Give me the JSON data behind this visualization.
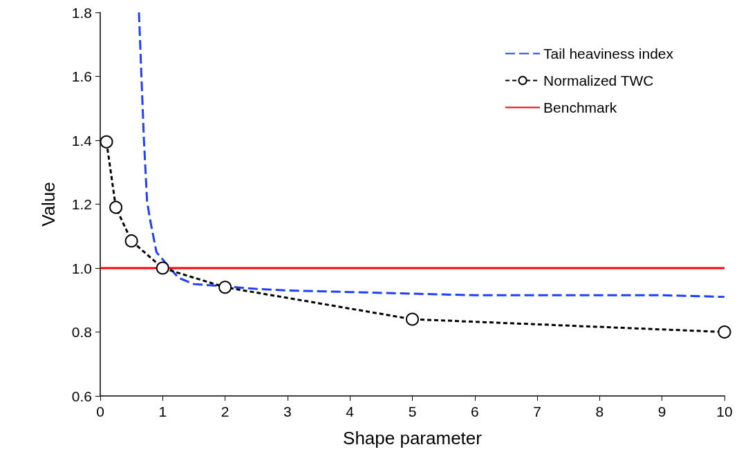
{
  "chart_data": {
    "type": "line",
    "xlabel": "Shape parameter",
    "ylabel": "Value",
    "xlim": [
      0,
      10
    ],
    "xticks": [
      0,
      1,
      2,
      3,
      4,
      5,
      6,
      7,
      8,
      9,
      10
    ],
    "ylim": [
      0.6,
      1.8
    ],
    "yticks": [
      {
        "value": 0.6,
        "label": "0.6"
      },
      {
        "value": 0.8,
        "label": "0.8"
      },
      {
        "value": 1.0,
        "label": "1.0"
      },
      {
        "value": 1.2,
        "label": "1.2"
      },
      {
        "value": 1.4,
        "label": "1.4"
      },
      {
        "value": 1.6,
        "label": "1.6"
      },
      {
        "value": 1.8,
        "label": "1.8"
      }
    ],
    "grid": false,
    "legend": "top right",
    "series": [
      {
        "name": "Tail heaviness index",
        "color": "#1f3fff",
        "line_style": "dashed",
        "marker": "none",
        "x": [
          0.62,
          0.66,
          0.7,
          0.75,
          0.8,
          0.9,
          1.25,
          1.5,
          2.5,
          3,
          4,
          5,
          6,
          7,
          8,
          9,
          10
        ],
        "values": [
          1.8,
          1.6,
          1.4,
          1.21,
          1.15,
          1.05,
          0.97,
          0.95,
          0.935,
          0.93,
          0.925,
          0.92,
          0.915,
          0.915,
          0.915,
          0.915,
          0.91
        ]
      },
      {
        "name": "Normalized TWC",
        "color": "#000000",
        "line_style": "dashed",
        "marker": "circle",
        "x": [
          0.1,
          0.25,
          0.5,
          1,
          2,
          5,
          10
        ],
        "values": [
          1.395,
          1.19,
          1.085,
          1.0,
          0.94,
          0.84,
          0.8
        ]
      },
      {
        "name": "Benchmark",
        "color": "#ff0000",
        "line_style": "solid",
        "marker": "none",
        "x": [
          0,
          10
        ],
        "values": [
          1.0,
          1.0
        ]
      }
    ]
  }
}
